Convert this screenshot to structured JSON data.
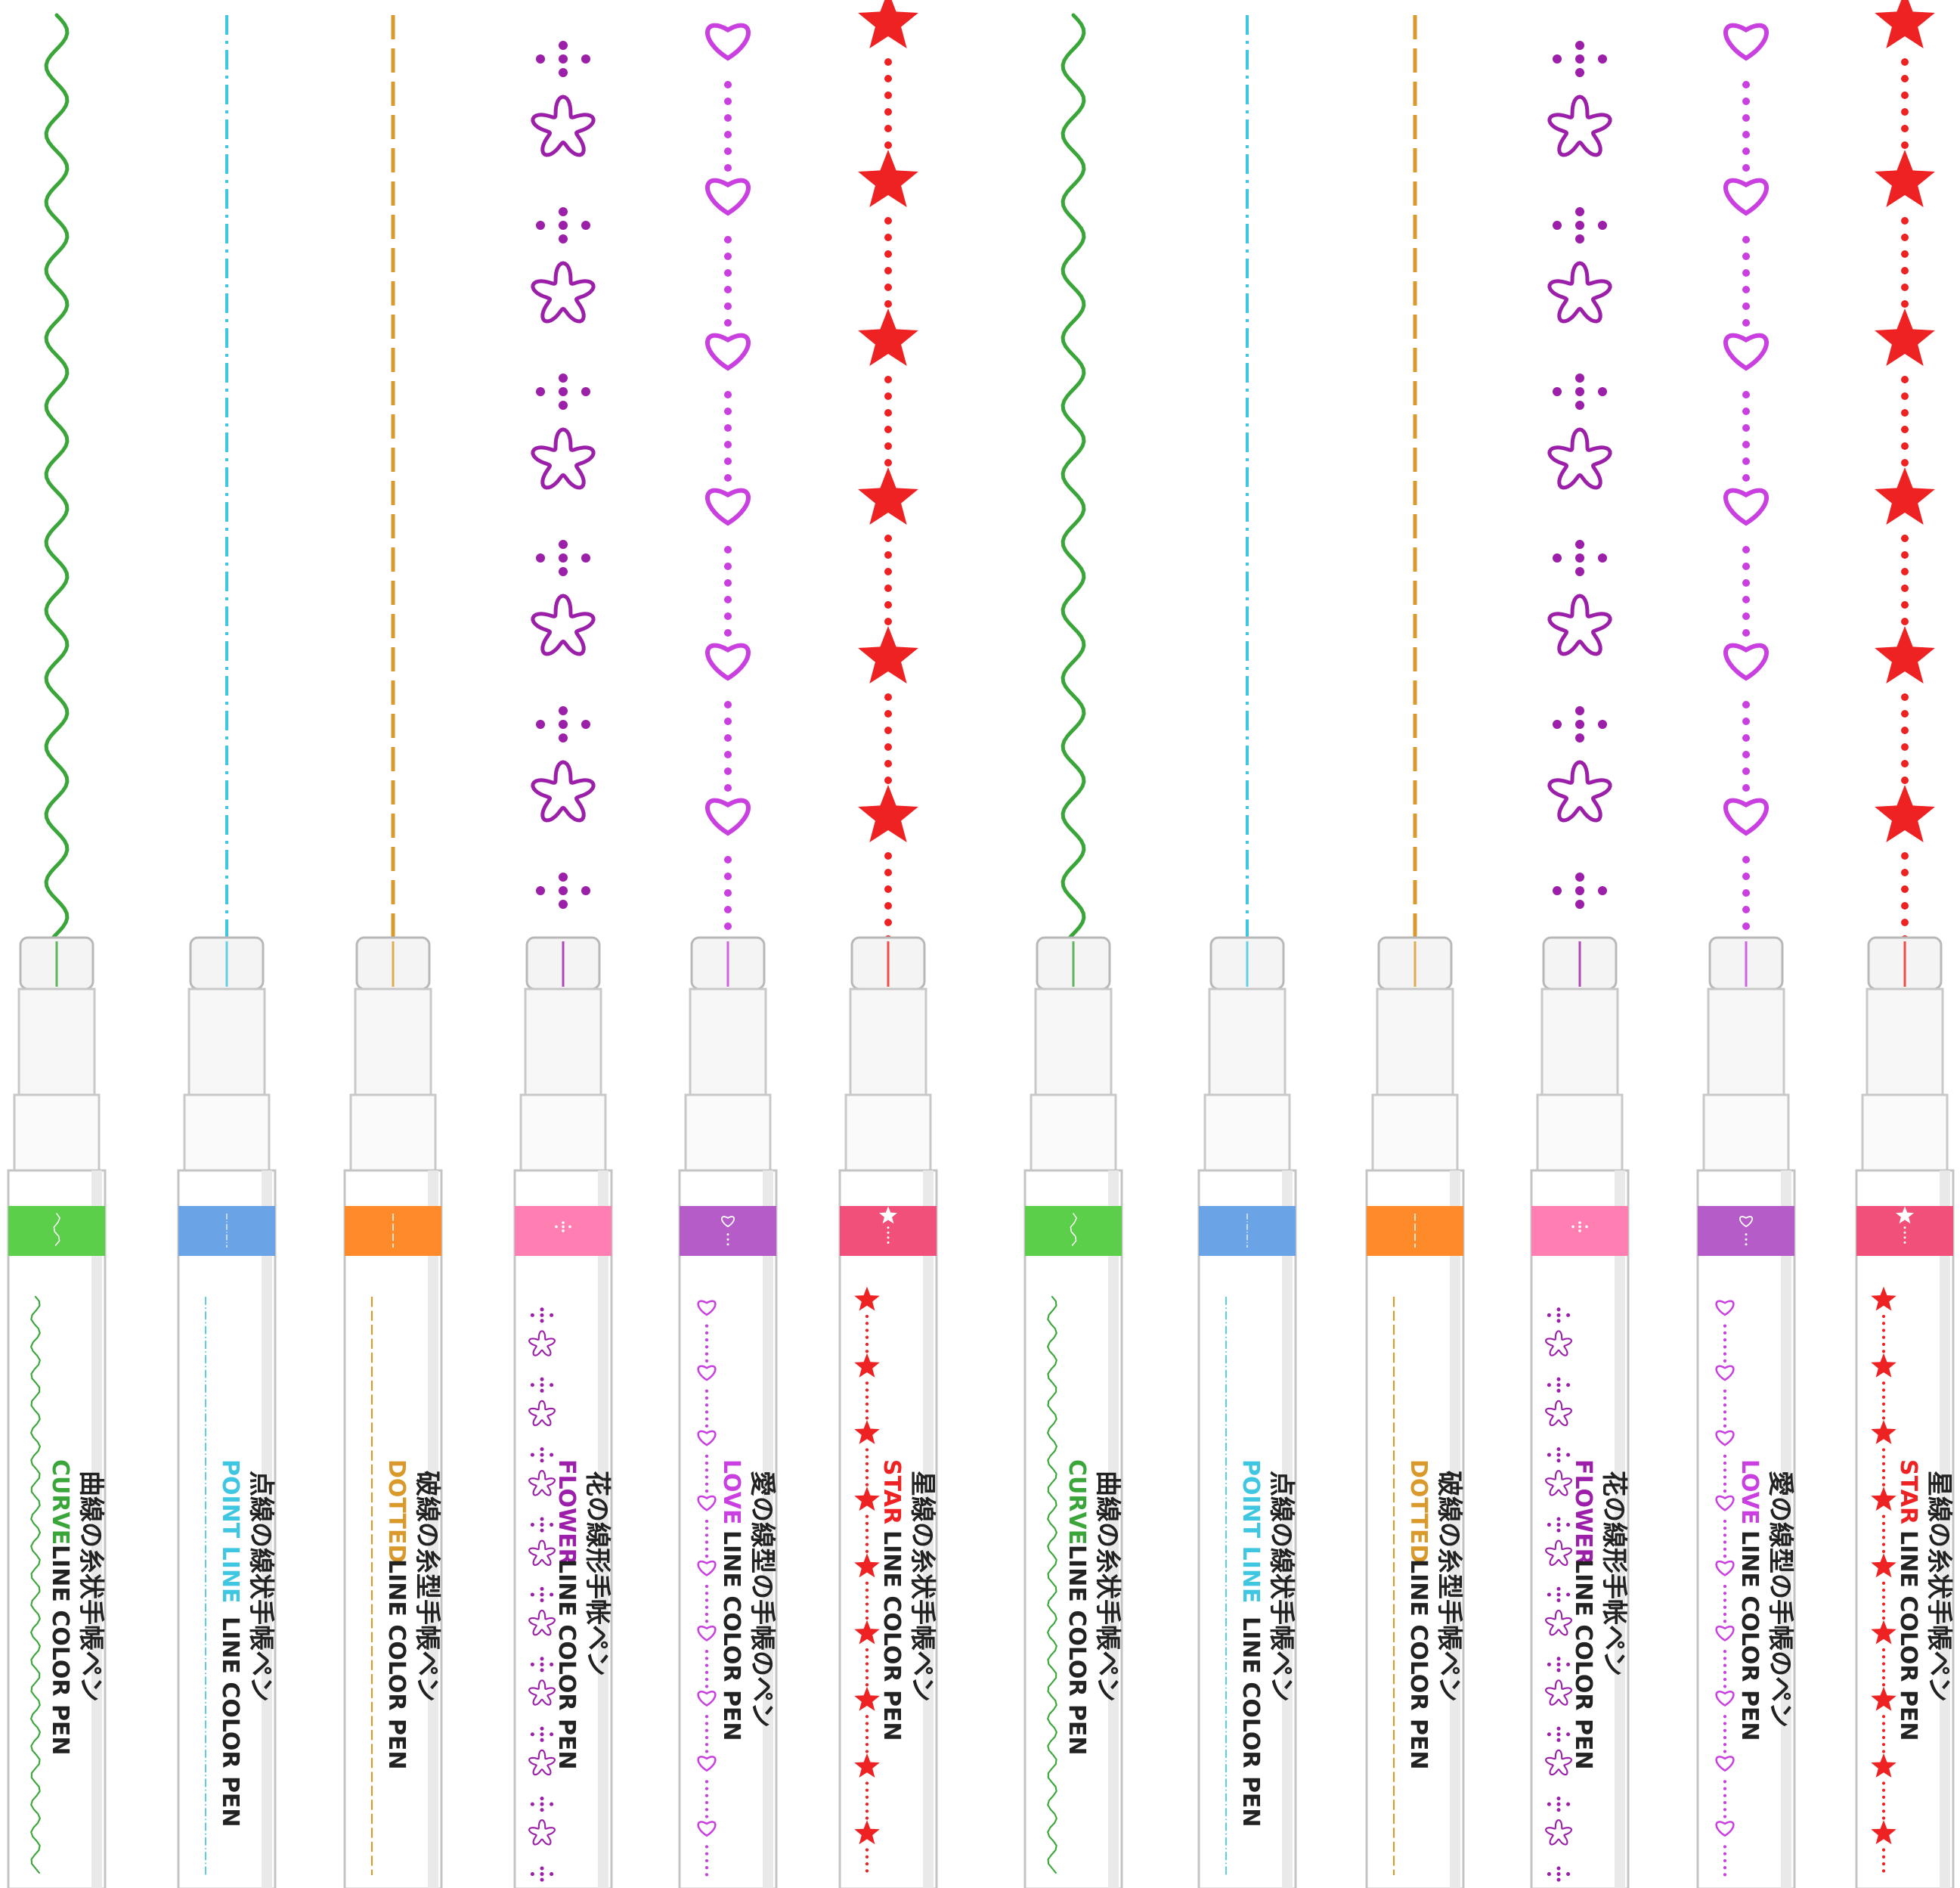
{
  "image": {
    "title": "",
    "background": "#ffffff"
  },
  "pens": [
    {
      "type": "curve",
      "english": "CURVE",
      "suffix": "LINE COLOR PEN",
      "japanese": "曲線の糸状手帳ペン",
      "color": "#3aa63a",
      "band": "#5ccf4a"
    },
    {
      "type": "pointline",
      "english": "POINT LINE",
      "suffix": "LINE COLOR PEN",
      "japanese": "点線の線状手帳ペン",
      "color": "#3fc6e0",
      "band": "#6aa3e6"
    },
    {
      "type": "dotted",
      "english": "DOTTED",
      "suffix": "LINE COLOR PEN",
      "japanese": "破線の糸型手帳ペン",
      "color": "#d99a2b",
      "band": "#ff8a2a"
    },
    {
      "type": "flower",
      "english": "FLOWER",
      "suffix": "LINE COLOR PEN",
      "japanese": "花の線形手帐ペン",
      "color": "#9b1fa8",
      "band": "#ff7fb3"
    },
    {
      "type": "love",
      "english": "LOVE",
      "suffix": "LINE COLOR PEN",
      "japanese": "愛の線型の手帳のペン",
      "color": "#c93fe0",
      "band": "#b65cc9"
    },
    {
      "type": "star",
      "english": "STAR",
      "suffix": "LINE COLOR PEN",
      "japanese": "星線の糸状手帳ペン",
      "color": "#ee2222",
      "band": "#f0507a"
    },
    {
      "type": "curve",
      "english": "CURVE",
      "suffix": "LINE COLOR PEN",
      "japanese": "曲線の糸状手帳ペン",
      "color": "#3aa63a",
      "band": "#5ccf4a"
    },
    {
      "type": "pointline",
      "english": "POINT LINE",
      "suffix": "LINE COLOR PEN",
      "japanese": "点線の線状手帳ペン",
      "color": "#3fc6e0",
      "band": "#6aa3e6"
    },
    {
      "type": "dotted",
      "english": "DOTTED",
      "suffix": "LINE COLOR PEN",
      "japanese": "破線の糸型手帳ペン",
      "color": "#d99a2b",
      "band": "#ff8a2a"
    },
    {
      "type": "flower",
      "english": "FLOWER",
      "suffix": "LINE COLOR PEN",
      "japanese": "花の線形手帐ペン",
      "color": "#9b1fa8",
      "band": "#ff7fb3"
    },
    {
      "type": "love",
      "english": "LOVE",
      "suffix": "LINE COLOR PEN",
      "japanese": "愛の線型の手帳のペン",
      "color": "#c93fe0",
      "band": "#b65cc9"
    },
    {
      "type": "star",
      "english": "STAR",
      "suffix": "LINE COLOR PEN",
      "japanese": "星線の糸状手帳ペン",
      "color": "#ee2222",
      "band": "#f0507a"
    }
  ]
}
